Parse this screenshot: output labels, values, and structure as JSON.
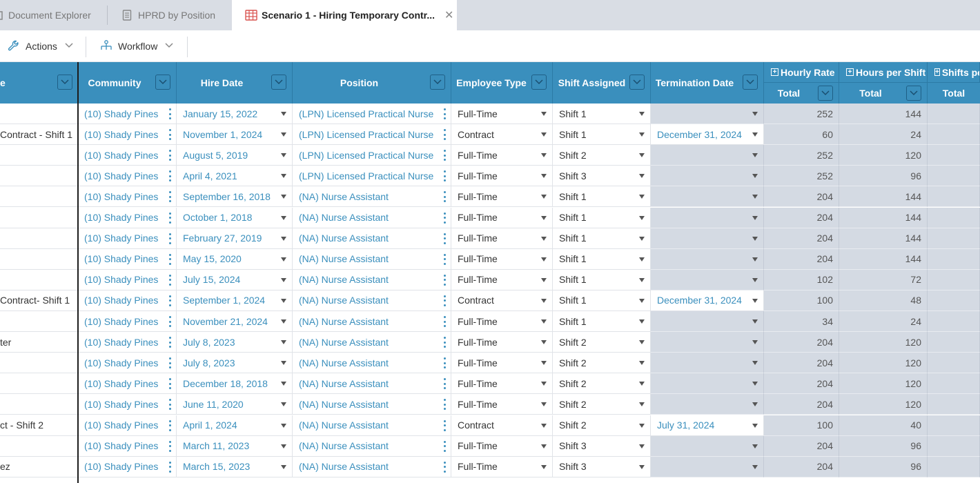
{
  "tabs": [
    {
      "label": "Document Explorer",
      "icon": "folder-icon"
    },
    {
      "label": "HPRD by Position",
      "icon": "document-icon"
    },
    {
      "label": "Scenario 1 - Hiring Temporary Contr...",
      "icon": "spreadsheet-icon",
      "close": "✕"
    }
  ],
  "toolbar": {
    "actions_label": "Actions",
    "workflow_label": "Workflow"
  },
  "columns": {
    "name": "e",
    "community": "Community",
    "hire_date": "Hire Date",
    "position": "Position",
    "employee_type": "Employee Type",
    "shift_assigned": "Shift Assigned",
    "termination_date": "Termination Date",
    "hourly_rate": "Hourly Rate",
    "hours_per_shift": "Hours per Shift",
    "shifts_per": "Shifts pe",
    "total": "Total"
  },
  "rows": [
    {
      "name": "",
      "community": "(10) Shady Pines",
      "hire_date": "January 15, 2022",
      "position": "(LPN) Licensed Practical Nurse",
      "type": "Full-Time",
      "shift": "Shift 1",
      "term": "",
      "rate": "252",
      "hours": "144"
    },
    {
      "name": "Contract - Shift 1",
      "community": "(10) Shady Pines",
      "hire_date": "November 1, 2024",
      "position": "(LPN) Licensed Practical Nurse",
      "type": "Contract",
      "shift": "Shift 1",
      "term": "December 31, 2024",
      "rate": "60",
      "hours": "24"
    },
    {
      "name": "",
      "community": "(10) Shady Pines",
      "hire_date": "August 5, 2019",
      "position": "(LPN) Licensed Practical Nurse",
      "type": "Full-Time",
      "shift": "Shift 2",
      "term": "",
      "rate": "252",
      "hours": "120"
    },
    {
      "name": "",
      "community": "(10) Shady Pines",
      "hire_date": "April 4, 2021",
      "position": "(LPN) Licensed Practical Nurse",
      "type": "Full-Time",
      "shift": "Shift 3",
      "term": "",
      "rate": "252",
      "hours": "96"
    },
    {
      "name": "",
      "community": "(10) Shady Pines",
      "hire_date": "September 16, 2018",
      "position": "(NA) Nurse Assistant",
      "type": "Full-Time",
      "shift": "Shift 1",
      "term": "",
      "rate": "204",
      "hours": "144"
    },
    {
      "name": "",
      "community": "(10) Shady Pines",
      "hire_date": "October 1, 2018",
      "position": "(NA) Nurse Assistant",
      "type": "Full-Time",
      "shift": "Shift 1",
      "term": "",
      "rate": "204",
      "hours": "144"
    },
    {
      "name": "",
      "community": "(10) Shady Pines",
      "hire_date": "February 27, 2019",
      "position": "(NA) Nurse Assistant",
      "type": "Full-Time",
      "shift": "Shift 1",
      "term": "",
      "rate": "204",
      "hours": "144"
    },
    {
      "name": "",
      "community": "(10) Shady Pines",
      "hire_date": "May 15, 2020",
      "position": "(NA) Nurse Assistant",
      "type": "Full-Time",
      "shift": "Shift 1",
      "term": "",
      "rate": "204",
      "hours": "144"
    },
    {
      "name": "",
      "community": "(10) Shady Pines",
      "hire_date": "July 15, 2024",
      "position": "(NA) Nurse Assistant",
      "type": "Full-Time",
      "shift": "Shift 1",
      "term": "",
      "rate": "102",
      "hours": "72"
    },
    {
      "name": "Contract- Shift 1",
      "community": "(10) Shady Pines",
      "hire_date": "September 1, 2024",
      "position": "(NA) Nurse Assistant",
      "type": "Contract",
      "shift": "Shift 1",
      "term": "December 31, 2024",
      "rate": "100",
      "hours": "48"
    },
    {
      "name": "",
      "community": "(10) Shady Pines",
      "hire_date": "November 21, 2024",
      "position": "(NA) Nurse Assistant",
      "type": "Full-Time",
      "shift": "Shift 1",
      "term": "",
      "rate": "34",
      "hours": "24"
    },
    {
      "name": "ter",
      "community": "(10) Shady Pines",
      "hire_date": "July 8, 2023",
      "position": "(NA) Nurse Assistant",
      "type": "Full-Time",
      "shift": "Shift 2",
      "term": "",
      "rate": "204",
      "hours": "120"
    },
    {
      "name": "",
      "community": "(10) Shady Pines",
      "hire_date": "July 8, 2023",
      "position": "(NA) Nurse Assistant",
      "type": "Full-Time",
      "shift": "Shift 2",
      "term": "",
      "rate": "204",
      "hours": "120"
    },
    {
      "name": "",
      "community": "(10) Shady Pines",
      "hire_date": "December 18, 2018",
      "position": "(NA) Nurse Assistant",
      "type": "Full-Time",
      "shift": "Shift 2",
      "term": "",
      "rate": "204",
      "hours": "120"
    },
    {
      "name": "",
      "community": "(10) Shady Pines",
      "hire_date": "June 11, 2020",
      "position": "(NA) Nurse Assistant",
      "type": "Full-Time",
      "shift": "Shift 2",
      "term": "",
      "rate": "204",
      "hours": "120"
    },
    {
      "name": "ct - Shift 2",
      "community": "(10) Shady Pines",
      "hire_date": "April 1, 2024",
      "position": "(NA) Nurse Assistant",
      "type": "Contract",
      "shift": "Shift 2",
      "term": "July 31, 2024",
      "rate": "100",
      "hours": "40"
    },
    {
      "name": "",
      "community": "(10) Shady Pines",
      "hire_date": "March 11, 2023",
      "position": "(NA) Nurse Assistant",
      "type": "Full-Time",
      "shift": "Shift 3",
      "term": "",
      "rate": "204",
      "hours": "96"
    },
    {
      "name": "ez",
      "community": "(10) Shady Pines",
      "hire_date": "March 15, 2023",
      "position": "(NA) Nurse Assistant",
      "type": "Full-Time",
      "shift": "Shift 3",
      "term": "",
      "rate": "204",
      "hours": "96"
    }
  ],
  "colors": {
    "header_bg": "#3a8fbd",
    "link": "#3a8fbd",
    "readonly_bg": "#d4dae3",
    "tabbar_bg": "#d9dde4"
  }
}
